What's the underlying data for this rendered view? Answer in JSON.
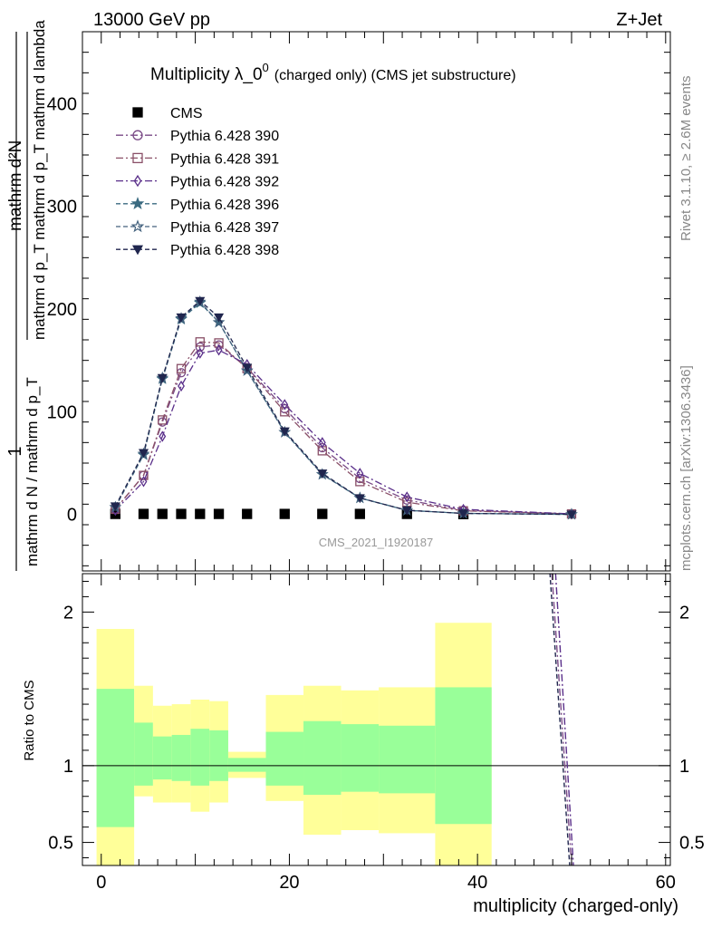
{
  "header": {
    "left": "13000 GeV pp",
    "right": "Z+Jet"
  },
  "side_labels": {
    "rivet": "Rivet 3.1.10, ≥ 2.6M events",
    "mcplots": "mcplots.cern.ch [arXiv:1306.3436]"
  },
  "watermark": "CMS_2021_I1920187",
  "chart_data": [
    {
      "type": "line",
      "title": "Multiplicity λ_0",
      "title_sup": "0",
      "subtitle": "(charged only) (CMS jet substructure)",
      "ylabel_numerator": "mathrm d²N",
      "ylabel_denominator": "mathrm d p_T mathrm d p_T mathrm d lambda",
      "ylabel_prefix_num": "1",
      "ylabel_prefix_den": "mathrm d N / mathrm d p_T",
      "xlim": [
        -2,
        60.5
      ],
      "ylim": [
        -55,
        470
      ],
      "yticks": [
        0,
        100,
        200,
        300,
        400
      ],
      "grid": false,
      "legend_position": "top-left",
      "x": [
        1.5,
        4.5,
        6.5,
        8.5,
        10.5,
        12.5,
        15.5,
        19.5,
        23.5,
        27.5,
        32.5,
        38.5,
        50
      ],
      "series": [
        {
          "name": "CMS",
          "color": "#000000",
          "marker": "square-filled",
          "dash": "none",
          "values": [
            0.5,
            0.5,
            0.5,
            0.5,
            0.5,
            0.5,
            0.5,
            0.5,
            0.5,
            0.5,
            0.5,
            0.3,
            0
          ]
        },
        {
          "name": "Pythia 6.428 390",
          "color": "#7a4a86",
          "marker": "circle-open",
          "dash": "8,3,2,3",
          "values": [
            5,
            38,
            90,
            138,
            163,
            165,
            143,
            103,
            65,
            35,
            14,
            4,
            0.5
          ]
        },
        {
          "name": "Pythia 6.428 391",
          "color": "#8a5068",
          "marker": "square-open",
          "dash": "8,3,2,3",
          "values": [
            5,
            38,
            92,
            142,
            168,
            167,
            142,
            100,
            62,
            32,
            12,
            3.5,
            0.5
          ]
        },
        {
          "name": "Pythia 6.428 392",
          "color": "#5a2f8a",
          "marker": "diamond-open",
          "dash": "8,3,2,3",
          "values": [
            4,
            32,
            76,
            125,
            157,
            160,
            146,
            107,
            70,
            40,
            17,
            5,
            0.6
          ]
        },
        {
          "name": "Pythia 6.428 396",
          "color": "#3a6a80",
          "marker": "star-filled",
          "dash": "5,3",
          "values": [
            7,
            58,
            132,
            190,
            206,
            187,
            140,
            80,
            39,
            16,
            4,
            1,
            0.1
          ]
        },
        {
          "name": "Pythia 6.428 397",
          "color": "#44627e",
          "marker": "star-open",
          "dash": "5,3",
          "values": [
            7,
            59,
            133,
            191,
            207,
            187,
            140,
            80,
            39,
            16,
            4,
            1,
            0.1
          ]
        },
        {
          "name": "Pythia 6.428 398",
          "color": "#20264e",
          "marker": "triangle-down-filled",
          "dash": "5,3",
          "values": [
            8,
            60,
            133,
            192,
            208,
            192,
            143,
            81,
            40,
            16,
            4,
            1,
            0.1
          ]
        }
      ]
    },
    {
      "type": "area",
      "ylabel": "Ratio to CMS",
      "xlabel": "multiplicity (charged-only)",
      "xlim": [
        -2,
        60.5
      ],
      "ylim": [
        0.35,
        2.25
      ],
      "xticks": [
        0,
        20,
        40,
        60
      ],
      "yticks": [
        0.5,
        1,
        2
      ],
      "reference_line": 1,
      "bands": {
        "edges": [
          -0.5,
          3.5,
          5.5,
          7.5,
          9.5,
          11.5,
          13.5,
          17.5,
          21.5,
          25.5,
          29.5,
          35.5,
          41.5
        ],
        "yellow": [
          [
            0.35,
            1.89
          ],
          [
            0.8,
            1.52
          ],
          [
            0.76,
            1.39
          ],
          [
            0.76,
            1.4
          ],
          [
            0.7,
            1.43
          ],
          [
            0.76,
            1.42
          ],
          [
            0.92,
            1.09
          ],
          [
            0.77,
            1.46
          ],
          [
            0.55,
            1.52
          ],
          [
            0.58,
            1.49
          ],
          [
            0.56,
            1.51
          ],
          [
            0.35,
            1.93
          ]
        ],
        "green": [
          [
            0.6,
            1.5
          ],
          [
            0.87,
            1.28
          ],
          [
            0.91,
            1.19
          ],
          [
            0.9,
            1.2
          ],
          [
            0.87,
            1.24
          ],
          [
            0.9,
            1.23
          ],
          [
            0.96,
            1.05
          ],
          [
            0.87,
            1.22
          ],
          [
            0.81,
            1.29
          ],
          [
            0.83,
            1.27
          ],
          [
            0.82,
            1.26
          ],
          [
            0.62,
            1.51
          ]
        ]
      },
      "ratio_curves": [
        {
          "color": "#7a4a86",
          "dash": "8,3,2,3",
          "x": [
            47.8,
            50.0
          ],
          "values": [
            2.35,
            0.35
          ]
        },
        {
          "color": "#5a2f8a",
          "dash": "8,3,2,3",
          "x": [
            48.2,
            50.2
          ],
          "values": [
            2.35,
            0.35
          ]
        },
        {
          "color": "#20264e",
          "dash": "5,3",
          "x": [
            47.6,
            49.8
          ],
          "values": [
            2.35,
            0.35
          ]
        }
      ]
    }
  ]
}
